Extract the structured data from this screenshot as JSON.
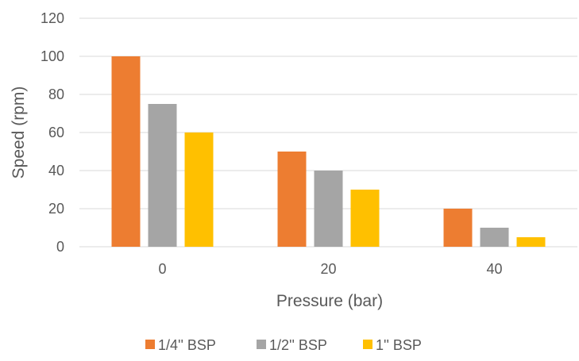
{
  "chart_data": {
    "type": "bar",
    "title": "",
    "xlabel": "Pressure (bar)",
    "ylabel": "Speed (rpm)",
    "categories": [
      "0",
      "20",
      "40"
    ],
    "series": [
      {
        "name": "1/4'' BSP",
        "values": [
          100,
          50,
          20
        ],
        "color": "#ED7D31"
      },
      {
        "name": "1/2'' BSP",
        "values": [
          75,
          40,
          10
        ],
        "color": "#A5A5A5"
      },
      {
        "name": "1'' BSP",
        "values": [
          60,
          30,
          5
        ],
        "color": "#FFC000"
      }
    ],
    "ylim": [
      0,
      120
    ],
    "yticks": [
      "0",
      "20",
      "40",
      "60",
      "80",
      "100",
      "120"
    ],
    "grid": true,
    "legend_position": "bottom",
    "colors": {
      "gridline": "#D9D9D9",
      "axis_text": "#595959"
    }
  }
}
